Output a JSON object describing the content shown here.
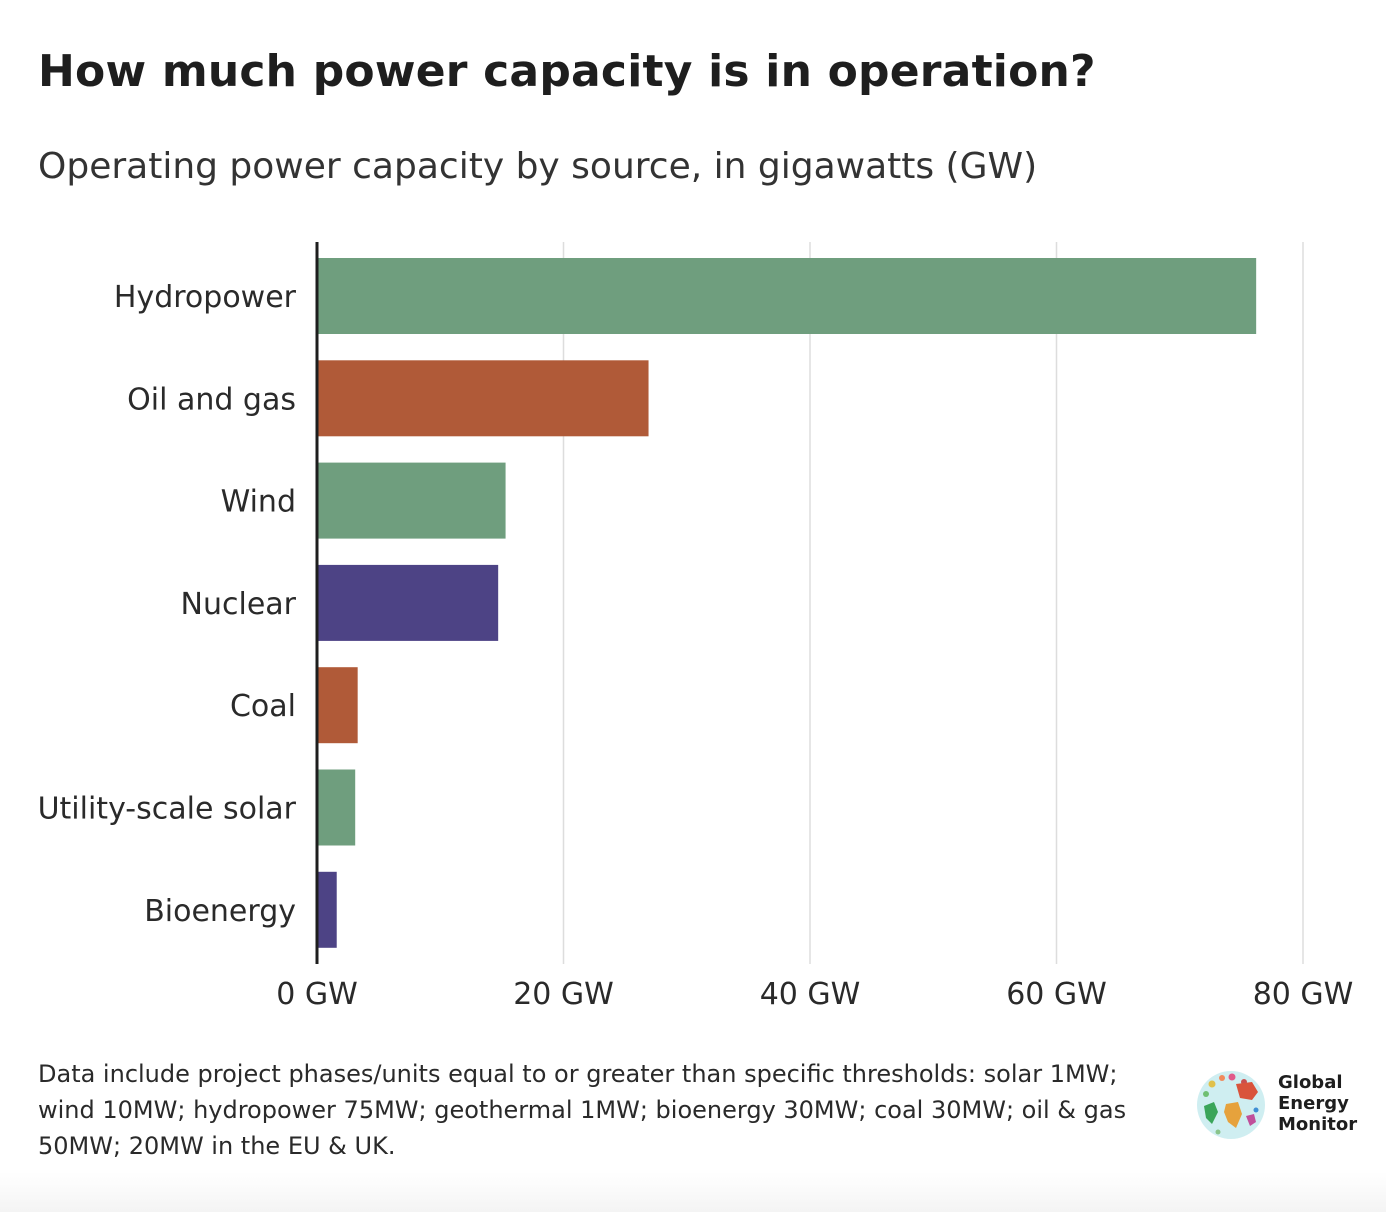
{
  "title": "How much power capacity is in operation?",
  "subtitle": "Operating power capacity by source, in gigawatts (GW)",
  "note": "Data include project phases/units equal to or greater than specific thresholds: solar 1MW; wind 10MW; hydropower 75MW; geothermal 1MW; bioenergy 30MW; coal 30MW; oil & gas 50MW; 20MW in the EU & UK.",
  "logo": {
    "line1": "Global",
    "line2": "Energy",
    "line3": "Monitor"
  },
  "colors": {
    "green": "#6f9e7e",
    "orange": "#b05a38",
    "purple": "#4d4385",
    "grid": "#dddddd",
    "axis": "#1e1e1e"
  },
  "chart_data": {
    "type": "bar",
    "orientation": "horizontal",
    "categories": [
      "Hydropower",
      "Oil and gas",
      "Wind",
      "Nuclear",
      "Coal",
      "Utility-scale solar",
      "Bioenergy"
    ],
    "values": [
      76.2,
      26.9,
      15.3,
      14.7,
      3.3,
      3.1,
      1.6
    ],
    "bar_colors": [
      "#6f9e7e",
      "#b05a38",
      "#6f9e7e",
      "#4d4385",
      "#b05a38",
      "#6f9e7e",
      "#4d4385"
    ],
    "x_ticks": [
      0,
      20,
      40,
      60,
      80
    ],
    "x_tick_labels": [
      "0 GW",
      "20 GW",
      "40 GW",
      "60 GW",
      "80 GW"
    ],
    "xlim": [
      0,
      80
    ],
    "grid": true,
    "unit": "GW"
  }
}
